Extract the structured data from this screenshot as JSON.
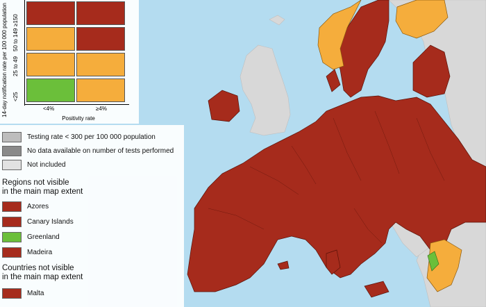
{
  "colors": {
    "sea": "#b4dcf0",
    "land_not_included": "#d8d8d8",
    "dark_red": "#a62b1c",
    "orange": "#f5ad3c",
    "green": "#6bbf3a",
    "testing_low": "#bdbdbd",
    "no_data": "#8a8a8a",
    "not_included": "#e2e2e2",
    "border": "#5a1208"
  },
  "matrix": {
    "y_axis_title": "14-day notification rate per 100 000 population",
    "x_axis_title": "Positivity rate",
    "y_ticks": [
      "<25",
      "25 to 49",
      "50 to 149",
      "≥150"
    ],
    "x_ticks": [
      "<4%",
      "≥4%"
    ],
    "cells": [
      [
        "green",
        "orange"
      ],
      [
        "orange",
        "orange"
      ],
      [
        "orange",
        "dark_red"
      ],
      [
        "dark_red",
        "dark_red"
      ]
    ]
  },
  "legend": {
    "items": [
      {
        "label": "Testing rate < 300 per 100 000 population",
        "color": "testing_low",
        "icon": "testing-rate-swatch"
      },
      {
        "label": "No data available on number of tests performed",
        "color": "no_data",
        "icon": "no-data-swatch"
      },
      {
        "label": "Not included",
        "color": "not_included",
        "icon": "not-included-swatch"
      }
    ],
    "regions_heading_1": "Regions not visible",
    "regions_heading_2": "in the main map extent",
    "regions": [
      {
        "label": "Azores",
        "color": "dark_red"
      },
      {
        "label": "Canary Islands",
        "color": "dark_red"
      },
      {
        "label": "Greenland",
        "color": "green"
      },
      {
        "label": "Madeira",
        "color": "dark_red"
      }
    ],
    "countries_heading_1": "Countries not visible",
    "countries_heading_2": "in the main map extent",
    "countries": [
      {
        "label": "Malta",
        "color": "dark_red"
      }
    ]
  }
}
